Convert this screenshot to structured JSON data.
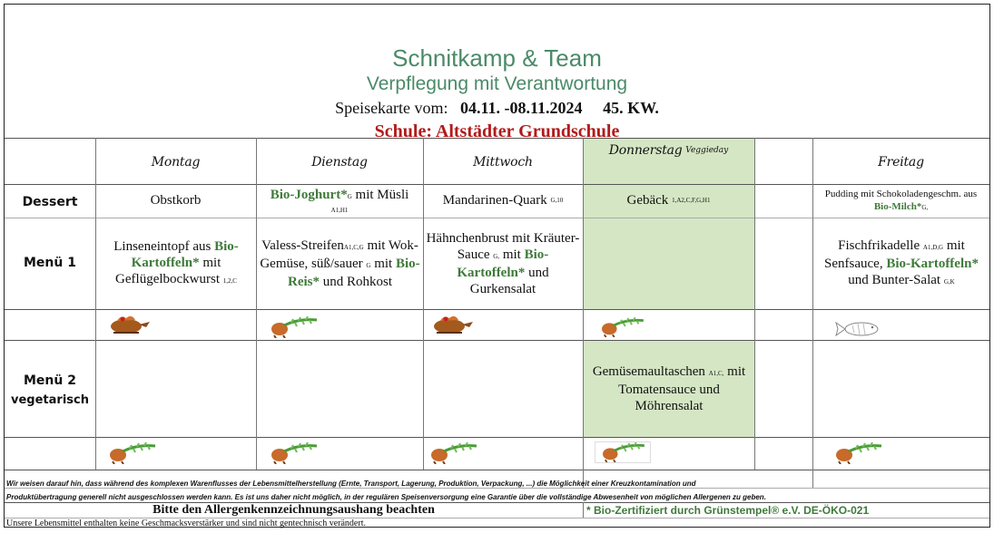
{
  "header": {
    "company": "Schnitkamp & Team",
    "tagline": "Verpflegung mit Verantwortung",
    "menu_prefix": "Speisekarte vom:",
    "date_range": "04.11. -08.11.2024",
    "week": "45. KW.",
    "school": "Schule: Altstädter Grundschule"
  },
  "days": {
    "mon": "Montag",
    "tue": "Dienstag",
    "wed": "Mittwoch",
    "thu": "Donnerstag",
    "thu_note": "Veggieday",
    "fri": "Freitag"
  },
  "rows": {
    "dessert": "Dessert",
    "menu1": "Menü 1",
    "menu2": "Menü 2",
    "menu2_sub": "vegetarisch"
  },
  "dessert": {
    "mon": "Obstkorb",
    "tue_bio": "Bio-Joghurt*",
    "tue_sup1": "G",
    "tue_rest": " mit Müsli",
    "tue_sup2": "A1,H1",
    "wed": "Mandarinen-Quark",
    "wed_sup": "G,10",
    "thu": "Gebäck",
    "thu_sup": "1,A2,C,F,G,H1",
    "fri_line1": "Pudding mit Schokoladengeschm. aus",
    "fri_bio": "Bio-Milch*",
    "fri_sup": "G,"
  },
  "menu1": {
    "mon_a": "Linseneintopf aus ",
    "mon_bio": "Bio-Kartoffeln*",
    "mon_b": " mit Geflügelbockwurst",
    "mon_sup": "1,2,C",
    "tue_a": "Valess-Streifen",
    "tue_sup1": "A1,C,G",
    "tue_b": " mit Wok-Gemüse, süß/sauer",
    "tue_sup2": "G",
    "tue_c": " mit ",
    "tue_bio": "Bio-Reis*",
    "tue_d": " und Rohkost",
    "wed_a": "Hähnchenbrust mit Kräuter-Sauce",
    "wed_sup": "G,",
    "wed_b": " mit ",
    "wed_bio": "Bio-Kartoffeln*",
    "wed_c": " und Gurkensalat",
    "fri_a": "Fischfrikadelle",
    "fri_sup1": "A1,D,G",
    "fri_b": " mit Senfsauce, ",
    "fri_bio": "Bio-Kartoffeln*",
    "fri_c": " und Bunter-Salat",
    "fri_sup2": "G,K"
  },
  "menu2": {
    "thu_a": "Gemüsemaultaschen",
    "thu_sup": "A1,C,",
    "thu_b": " mit Tomatensauce und Möhrensalat"
  },
  "icons": {
    "menu1": [
      "chicken-icon",
      "vegetable-icon",
      "chicken-icon",
      "vegetable-icon",
      "fish-icon"
    ],
    "menu2": [
      "vegetable-icon",
      "vegetable-icon",
      "vegetable-icon",
      "vegetable-icon",
      "vegetable-icon"
    ]
  },
  "footer": {
    "notice_1": "Wir weisen darauf hin, dass während des komplexen Warenflusses der Lebensmittelherstellung (Ernte, Transport, Lagerung, Produktion, Verpackung, ...) die Möglichkeit einer Kreuzkontamination und",
    "notice_2": "Produktübertragung generell nicht ausgeschlossen werden kann. Es ist uns daher nicht möglich, in der regulären Speisenversorgung eine Garantie über die vollständige Abwesenheit von möglichen Allergenen zu geben.",
    "allergen_note": "Bitte den  Allergenkennzeichnungsaushang beachten",
    "bio_cert": "* Bio-Zertifiziert durch Grünstempel® e.V. DE-ÖKO-021",
    "no_additives": "Unsere Lebensmittel enthalten keine Geschmacksverstärker und sind nicht gentechnisch verändert."
  },
  "colors": {
    "accent_green": "#4a8a68",
    "bio_green": "#3f7a3a",
    "school_red": "#b21a1a",
    "veggie_bg": "#d5e6c4"
  }
}
